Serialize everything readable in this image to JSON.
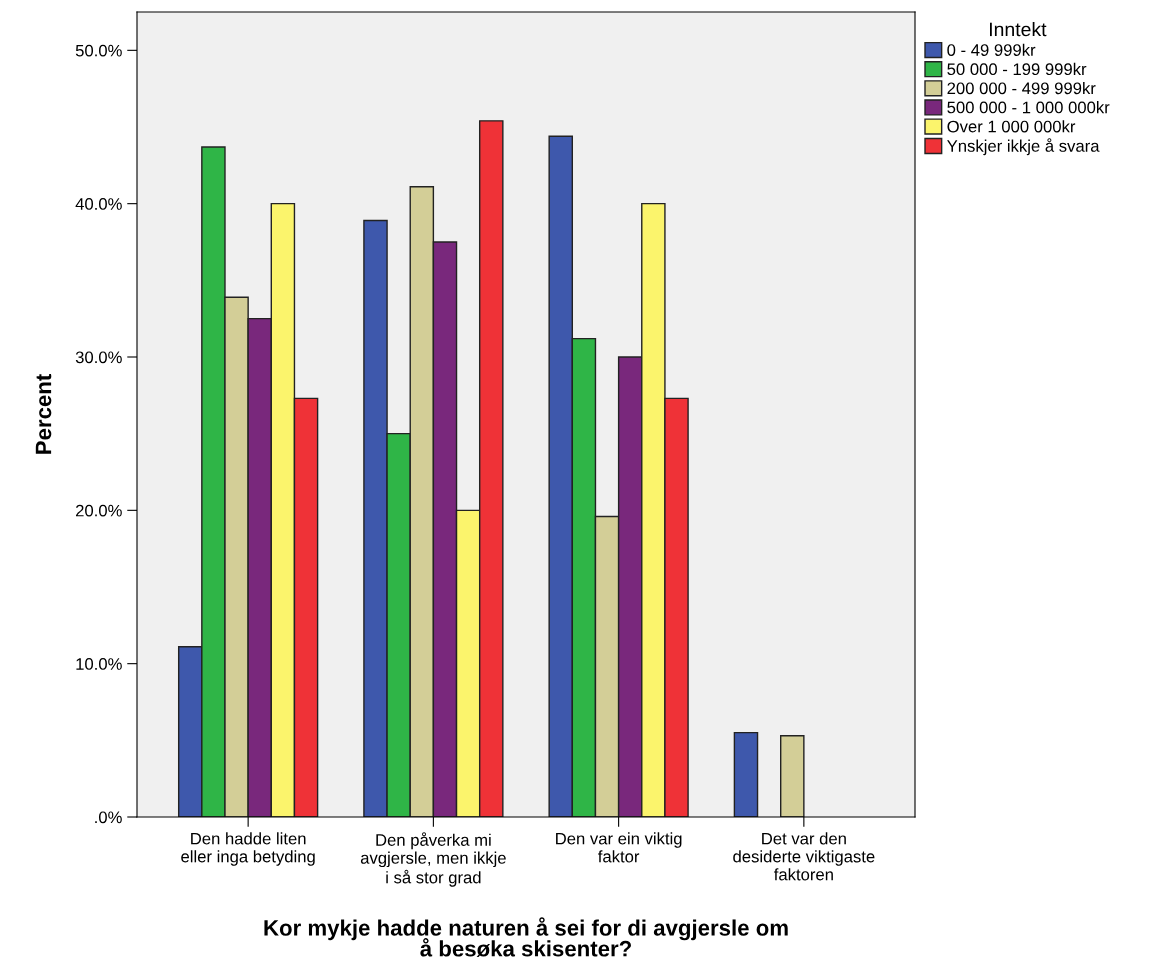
{
  "chart_data": {
    "type": "bar",
    "xlabel": "Kor mykje hadde naturen å sei for di avgjersle om\nå besøka skisenter?",
    "ylabel": "Percent",
    "legend_title": "Inntekt",
    "categories": [
      "Den hadde liten\neller inga betyding",
      "Den påverka mi\navgjersle, men ikkje\ni så stor grad",
      "Den var ein viktig\nfaktor",
      "Det var den\ndesiderte viktigaste\nfaktoren"
    ],
    "series": [
      {
        "name": "0 - 49 999kr",
        "color": "#3e58ac",
        "values": [
          11.1,
          38.9,
          44.4,
          5.5
        ]
      },
      {
        "name": "50 000 - 199 999kr",
        "color": "#2fb547",
        "values": [
          43.7,
          25.0,
          31.2,
          null
        ]
      },
      {
        "name": "200 000 - 499 999kr",
        "color": "#d3ce97",
        "values": [
          33.9,
          41.1,
          19.6,
          5.3
        ]
      },
      {
        "name": "500 000 - 1 000 000kr",
        "color": "#79287c",
        "values": [
          32.5,
          37.5,
          30.0,
          null
        ]
      },
      {
        "name": "Over 1 000 000kr",
        "color": "#fbf46c",
        "values": [
          40.0,
          20.0,
          40.0,
          null
        ]
      },
      {
        "name": "Ynskjer ikkje å svara",
        "color": "#ef3237",
        "values": [
          27.3,
          45.4,
          27.3,
          null
        ]
      }
    ],
    "ylim": [
      0,
      52.5
    ],
    "yticks": [
      {
        "value": 0,
        "label": ".0%"
      },
      {
        "value": 10,
        "label": "10.0%"
      },
      {
        "value": 20,
        "label": "20.0%"
      },
      {
        "value": 30,
        "label": "30.0%"
      },
      {
        "value": 40,
        "label": "40.0%"
      },
      {
        "value": 50,
        "label": "50.0%"
      }
    ],
    "grid": false,
    "legend": "top right"
  }
}
